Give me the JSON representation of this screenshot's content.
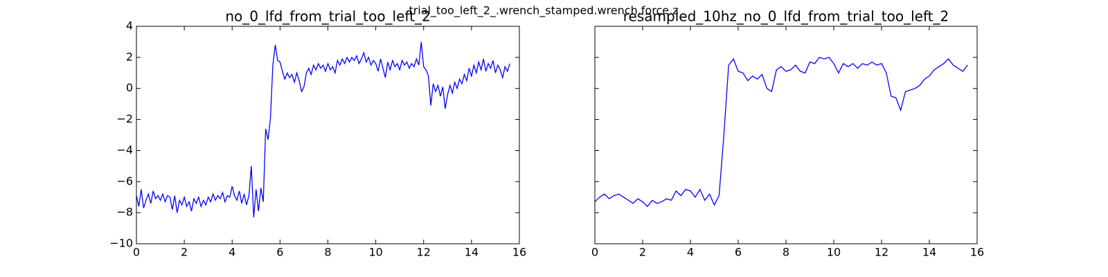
{
  "title": "trial_too_left_2_.wrench_stamped.wrench.force.z",
  "chart_data": [
    {
      "type": "line",
      "title": "no_0_lfd_from_trial_too_left_2",
      "color": "#0000ff",
      "xlim": [
        0,
        16
      ],
      "xticks": [
        0,
        2,
        4,
        6,
        8,
        10,
        12,
        14,
        16
      ],
      "ylim": [
        -10,
        4
      ],
      "yticks": [
        {
          "value": -10,
          "label": "−10"
        },
        {
          "value": -8,
          "label": "−8"
        },
        {
          "value": -6,
          "label": "−6"
        },
        {
          "value": -4,
          "label": "−4"
        },
        {
          "value": -2,
          "label": "−2"
        },
        0,
        2,
        4
      ],
      "x": [
        0,
        0.1,
        0.2,
        0.3,
        0.4,
        0.5,
        0.6,
        0.7,
        0.8,
        0.9,
        1,
        1.1,
        1.2,
        1.3,
        1.4,
        1.5,
        1.6,
        1.7,
        1.8,
        1.9,
        2,
        2.1,
        2.2,
        2.3,
        2.4,
        2.5,
        2.6,
        2.7,
        2.8,
        2.9,
        3,
        3.1,
        3.2,
        3.3,
        3.4,
        3.5,
        3.6,
        3.7,
        3.8,
        3.9,
        4,
        4.1,
        4.2,
        4.3,
        4.4,
        4.5,
        4.6,
        4.7,
        4.8,
        4.9,
        5,
        5.1,
        5.2,
        5.3,
        5.4,
        5.5,
        5.6,
        5.7,
        5.8,
        5.9,
        6,
        6.1,
        6.2,
        6.3,
        6.4,
        6.5,
        6.6,
        6.7,
        6.8,
        6.9,
        7,
        7.1,
        7.2,
        7.3,
        7.4,
        7.5,
        7.6,
        7.7,
        7.8,
        7.9,
        8,
        8.1,
        8.2,
        8.3,
        8.4,
        8.5,
        8.6,
        8.7,
        8.8,
        8.9,
        9,
        9.1,
        9.2,
        9.3,
        9.4,
        9.5,
        9.6,
        9.7,
        9.8,
        9.9,
        10,
        10.1,
        10.2,
        10.3,
        10.4,
        10.5,
        10.6,
        10.7,
        10.8,
        10.9,
        11,
        11.1,
        11.2,
        11.3,
        11.4,
        11.5,
        11.6,
        11.7,
        11.8,
        11.9,
        12,
        12.1,
        12.2,
        12.3,
        12.4,
        12.5,
        12.6,
        12.7,
        12.8,
        12.9,
        13,
        13.1,
        13.2,
        13.3,
        13.4,
        13.5,
        13.6,
        13.7,
        13.8,
        13.9,
        14,
        14.1,
        14.2,
        14.3,
        14.4,
        14.5,
        14.6,
        14.7,
        14.8,
        14.9,
        15,
        15.1,
        15.2,
        15.3,
        15.4,
        15.5,
        15.6
      ],
      "values": [
        -6.9,
        -7.6,
        -6.5,
        -7.7,
        -7.2,
        -6.8,
        -7.4,
        -6.6,
        -7.1,
        -6.9,
        -7.2,
        -6.8,
        -7.3,
        -6.9,
        -7.0,
        -7.8,
        -6.9,
        -8.0,
        -7.2,
        -7.5,
        -7.0,
        -7.6,
        -7.3,
        -7.9,
        -7.1,
        -7.4,
        -7.0,
        -7.6,
        -7.2,
        -7.5,
        -7.0,
        -7.3,
        -6.8,
        -7.2,
        -6.9,
        -7.1,
        -6.7,
        -7.3,
        -6.9,
        -7.0,
        -6.3,
        -6.9,
        -7.2,
        -6.6,
        -7.4,
        -6.8,
        -7.5,
        -6.9,
        -5.0,
        -8.3,
        -6.5,
        -7.9,
        -6.4,
        -7.3,
        -2.6,
        -3.3,
        -1.9,
        1.5,
        2.8,
        1.8,
        1.7,
        1.1,
        0.6,
        1.0,
        0.7,
        0.9,
        0.4,
        1.0,
        0.5,
        -0.2,
        0.1,
        1.0,
        1.3,
        0.9,
        1.5,
        1.2,
        1.6,
        1.3,
        1.5,
        1.1,
        1.6,
        1.2,
        1.4,
        1.0,
        1.8,
        1.5,
        1.9,
        1.6,
        2.0,
        1.7,
        2.0,
        1.8,
        2.1,
        1.6,
        1.9,
        2.3,
        1.7,
        2.0,
        1.5,
        1.8,
        1.6,
        1.1,
        1.9,
        1.3,
        0.7,
        1.7,
        1.2,
        1.8,
        1.4,
        1.6,
        1.2,
        1.8,
        1.5,
        1.7,
        1.3,
        1.6,
        1.4,
        1.9,
        1.5,
        3.0,
        1.4,
        1.2,
        0.8,
        -1.1,
        0.3,
        -0.2,
        0.2,
        -0.5,
        0.1,
        -1.3,
        -0.4,
        0.2,
        -0.3,
        0.4,
        0.0,
        0.6,
        0.3,
        0.9,
        0.5,
        1.3,
        0.8,
        1.5,
        1.0,
        1.7,
        1.2,
        1.9,
        1.1,
        1.6,
        1.3,
        1.8,
        1.0,
        1.5,
        1.2,
        0.7,
        1.4,
        1.1,
        1.6
      ]
    },
    {
      "type": "line",
      "title": "resampled_10hz_no_0_lfd_from_trial_too_left_2",
      "color": "#0000ff",
      "xlim": [
        0,
        16
      ],
      "xticks": [
        0,
        2,
        4,
        6,
        8,
        10,
        12,
        14,
        16
      ],
      "ylim": [
        -10,
        4
      ],
      "yticks": [
        -10,
        -8,
        -6,
        -4,
        -2,
        0,
        2,
        4
      ],
      "x": [
        0,
        0.2,
        0.4,
        0.6,
        0.8,
        1,
        1.2,
        1.4,
        1.6,
        1.8,
        2,
        2.2,
        2.4,
        2.6,
        2.8,
        3,
        3.2,
        3.4,
        3.6,
        3.8,
        4,
        4.2,
        4.4,
        4.6,
        4.8,
        5,
        5.2,
        5.4,
        5.6,
        5.8,
        6,
        6.2,
        6.4,
        6.6,
        6.8,
        7,
        7.2,
        7.4,
        7.6,
        7.8,
        8,
        8.2,
        8.4,
        8.6,
        8.8,
        9,
        9.2,
        9.4,
        9.6,
        9.8,
        10,
        10.2,
        10.4,
        10.6,
        10.8,
        11,
        11.2,
        11.4,
        11.6,
        11.8,
        12,
        12.2,
        12.4,
        12.6,
        12.8,
        13,
        13.2,
        13.4,
        13.6,
        13.8,
        14,
        14.2,
        14.4,
        14.6,
        14.8,
        15,
        15.2,
        15.4,
        15.6
      ],
      "values": [
        -7.3,
        -7.0,
        -6.8,
        -7.1,
        -6.9,
        -6.8,
        -7.0,
        -7.2,
        -7.4,
        -7.1,
        -7.3,
        -7.6,
        -7.2,
        -7.4,
        -7.3,
        -7.1,
        -7.2,
        -6.6,
        -6.9,
        -6.5,
        -6.6,
        -7.0,
        -6.5,
        -7.2,
        -6.8,
        -7.5,
        -6.9,
        -3.0,
        1.5,
        1.9,
        1.1,
        1.0,
        0.5,
        0.8,
        0.6,
        0.9,
        0.0,
        -0.2,
        1.2,
        1.4,
        1.1,
        1.2,
        1.5,
        1.1,
        1.0,
        1.7,
        1.6,
        2.0,
        1.9,
        2.0,
        1.6,
        1.0,
        1.6,
        1.4,
        1.6,
        1.3,
        1.6,
        1.5,
        1.7,
        1.5,
        1.6,
        1.0,
        -0.5,
        -0.6,
        -1.4,
        -0.2,
        -0.1,
        0.0,
        0.2,
        0.6,
        0.8,
        1.2,
        1.4,
        1.6,
        1.9,
        1.5,
        1.3,
        1.1,
        1.5
      ]
    }
  ]
}
